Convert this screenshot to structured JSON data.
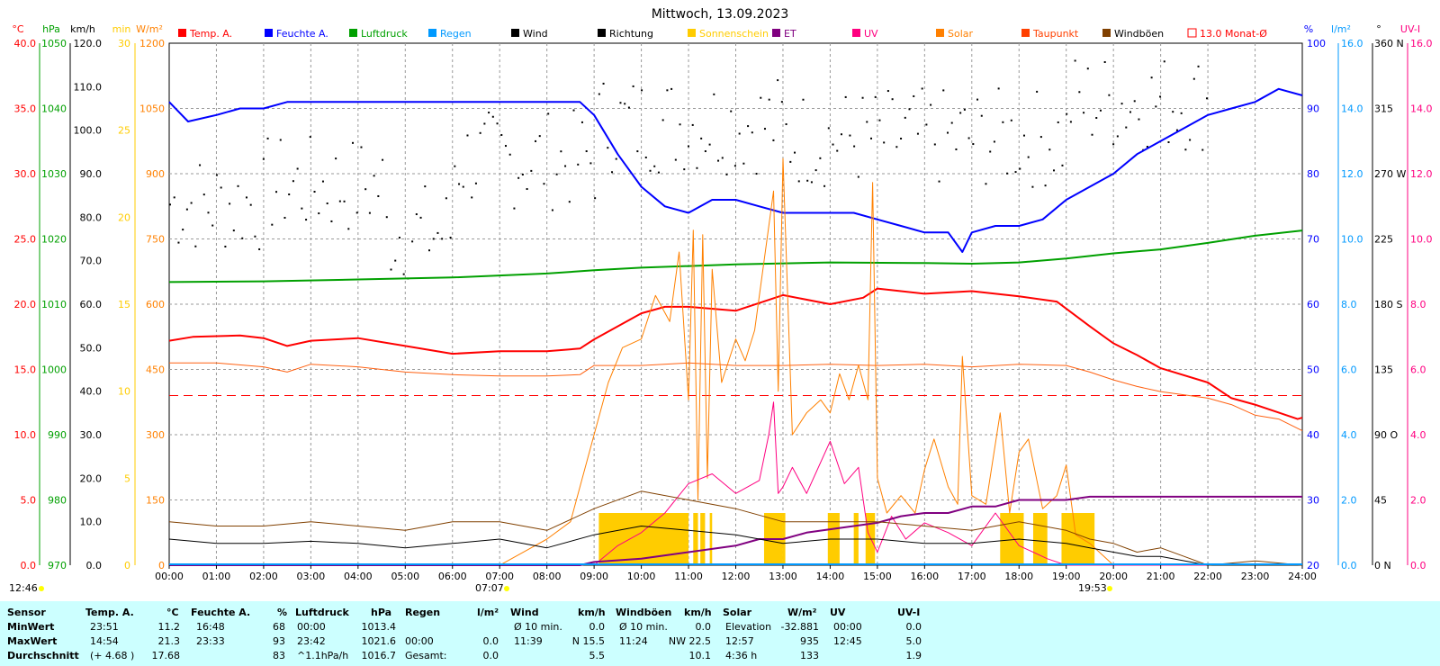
{
  "chart_data": {
    "type": "line",
    "title": "Mittwoch, 13.09.2023",
    "x": [
      "00:00",
      "01:00",
      "02:00",
      "03:00",
      "04:00",
      "05:00",
      "06:00",
      "07:00",
      "08:00",
      "09:00",
      "10:00",
      "11:00",
      "12:00",
      "13:00",
      "14:00",
      "15:00",
      "16:00",
      "17:00",
      "18:00",
      "19:00",
      "20:00",
      "21:00",
      "22:00",
      "23:00",
      "24:00"
    ],
    "legend": [
      {
        "name": "Temp. A.",
        "color": "#ff0000",
        "text_color": "#ff0000"
      },
      {
        "name": "Feuchte A.",
        "color": "#0000ff",
        "text_color": "#0000ff"
      },
      {
        "name": "Luftdruck",
        "color": "#00a000",
        "text_color": "#00a000"
      },
      {
        "name": "Regen",
        "color": "#0099ff",
        "text_color": "#0099ff"
      },
      {
        "name": "Wind",
        "color": "#000000",
        "text_color": "#000000"
      },
      {
        "name": "Richtung",
        "color": "#000000",
        "text_color": "#000000"
      },
      {
        "name": "Sonnenschein",
        "color": "#ffcc00",
        "text_color": "#ffcc00"
      },
      {
        "name": "ET",
        "color": "#800080",
        "text_color": "#800080"
      },
      {
        "name": "UV",
        "color": "#ff0080",
        "text_color": "#ff0080"
      },
      {
        "name": "Solar",
        "color": "#ff8000",
        "text_color": "#ff8000"
      },
      {
        "name": "Taupunkt",
        "color": "#ff4000",
        "text_color": "#ff4000"
      },
      {
        "name": "Windböen",
        "color": "#804000",
        "text_color": "#000000"
      },
      {
        "name": "13.0 Monat-Ø",
        "color": "#ff0000",
        "text_color": "#ff0000",
        "outline": true
      }
    ],
    "axes": {
      "temp": {
        "unit": "°C",
        "ticks": [
          "0.0",
          "5.0",
          "10.0",
          "15.0",
          "20.0",
          "25.0",
          "30.0",
          "35.0",
          "40.0"
        ],
        "color": "#ff0000",
        "range": [
          0,
          40
        ]
      },
      "pressure": {
        "unit": "hPa",
        "ticks": [
          "970",
          "980",
          "990",
          "1000",
          "1010",
          "1020",
          "1030",
          "1040",
          "1050"
        ],
        "color": "#00a000",
        "range": [
          970,
          1050
        ]
      },
      "wind": {
        "unit": "km/h",
        "ticks": [
          "0.0",
          "10.0",
          "20.0",
          "30.0",
          "40.0",
          "50.0",
          "60.0",
          "70.0",
          "80.0",
          "90.0",
          "100.0",
          "110.0",
          "120.0"
        ],
        "color": "#000000",
        "range": [
          0,
          120
        ]
      },
      "sunshine": {
        "unit": "min",
        "ticks": [
          "0",
          "5",
          "10",
          "15",
          "20",
          "25",
          "30"
        ],
        "color": "#ffcc00",
        "range": [
          0,
          30
        ]
      },
      "solar": {
        "unit": "W/m²",
        "ticks": [
          "0",
          "150",
          "300",
          "450",
          "600",
          "750",
          "900",
          "1050",
          "1200"
        ],
        "color": "#ff8000",
        "range": [
          0,
          1200
        ]
      },
      "humidity": {
        "unit": "%",
        "ticks": [
          "20",
          "30",
          "40",
          "50",
          "60",
          "70",
          "80",
          "90",
          "100"
        ],
        "color": "#0000ff",
        "range": [
          20,
          100
        ]
      },
      "rain": {
        "unit": "l/m²",
        "ticks": [
          "0.0",
          "2.0",
          "4.0",
          "6.0",
          "8.0",
          "10.0",
          "12.0",
          "14.0",
          "16.0"
        ],
        "color": "#0099ff",
        "range": [
          0,
          16
        ]
      },
      "direction": {
        "unit": "°",
        "ticks": [
          "0 N",
          "45",
          "90 O",
          "135",
          "180 S",
          "225",
          "270 W",
          "315",
          "360 N"
        ],
        "color": "#000000",
        "range": [
          0,
          360
        ]
      },
      "uv": {
        "unit": "UV-I",
        "ticks": [
          "0.0",
          "2.0",
          "4.0",
          "6.0",
          "8.0",
          "10.0",
          "12.0",
          "14.0",
          "16.0"
        ],
        "color": "#ff0080",
        "range": [
          0,
          16
        ]
      }
    },
    "monthly_avg_temp": 13.0,
    "series": [
      {
        "name": "Temp. A.",
        "axis": "temp",
        "color": "#ff0000",
        "x": [
          0,
          0.5,
          1.5,
          2,
          2.5,
          3,
          4,
          5,
          6,
          7,
          8,
          8.7,
          9,
          10,
          10.5,
          11,
          12,
          13,
          14,
          14.7,
          15,
          16,
          17,
          18,
          18.8,
          19.5,
          20,
          20.5,
          21,
          22,
          22.5,
          23,
          23.5,
          23.9,
          24
        ],
        "values": [
          17.2,
          17.5,
          17.6,
          17.4,
          16.8,
          17.2,
          17.4,
          16.8,
          16.2,
          16.4,
          16.4,
          16.6,
          17.3,
          19.3,
          19.8,
          19.8,
          19.5,
          20.7,
          20.0,
          20.5,
          21.2,
          20.8,
          21.0,
          20.6,
          20.2,
          18.3,
          17.0,
          16.1,
          15.1,
          14.0,
          12.8,
          12.3,
          11.7,
          11.2,
          11.3
        ]
      },
      {
        "name": "Feuchte A.",
        "axis": "humidity",
        "color": "#0000ff",
        "x": [
          0,
          0.4,
          1,
          1.5,
          2,
          2.5,
          3,
          4,
          5,
          6,
          7,
          8,
          8.7,
          9,
          9.5,
          10,
          10.5,
          11,
          11.5,
          12,
          12.5,
          13,
          13.5,
          14,
          14.5,
          15,
          15.5,
          16,
          16.5,
          16.8,
          17,
          17.5,
          18,
          18.5,
          19,
          19.5,
          20,
          20.5,
          21,
          21.5,
          22,
          22.5,
          23,
          23.5,
          24
        ],
        "values": [
          91,
          88,
          89,
          90,
          90,
          91,
          91,
          91,
          91,
          91,
          91,
          91,
          91,
          89,
          83,
          78,
          75,
          74,
          76,
          76,
          75,
          74,
          74,
          74,
          74,
          73,
          72,
          71,
          71,
          68,
          71,
          72,
          72,
          73,
          76,
          78,
          80,
          83,
          85,
          87,
          89,
          90,
          91,
          93,
          92
        ]
      },
      {
        "name": "Luftdruck",
        "axis": "pressure",
        "color": "#00a000",
        "x": [
          0,
          2,
          4,
          6,
          8,
          9,
          10,
          12,
          14,
          16,
          17,
          18,
          19,
          20,
          21,
          22,
          23,
          24
        ],
        "values": [
          1013.4,
          1013.5,
          1013.8,
          1014.1,
          1014.7,
          1015.2,
          1015.6,
          1016.1,
          1016.4,
          1016.3,
          1016.2,
          1016.4,
          1017.0,
          1017.8,
          1018.4,
          1019.4,
          1020.5,
          1021.3
        ]
      },
      {
        "name": "Taupunkt",
        "axis": "temp",
        "color": "#ff6010",
        "x": [
          0,
          1,
          2,
          2.5,
          3,
          4,
          5,
          6,
          7,
          8,
          8.7,
          9,
          10,
          11,
          12,
          13,
          14,
          15,
          16,
          17,
          18,
          19,
          19.5,
          20,
          20.5,
          21,
          22,
          22.5,
          23,
          23.5,
          24
        ],
        "values": [
          15.5,
          15.5,
          15.2,
          14.8,
          15.4,
          15.2,
          14.8,
          14.6,
          14.5,
          14.5,
          14.6,
          15.3,
          15.3,
          15.5,
          15.3,
          15.3,
          15.4,
          15.3,
          15.4,
          15.2,
          15.4,
          15.3,
          14.8,
          14.2,
          13.7,
          13.3,
          12.8,
          12.3,
          11.5,
          11.2,
          10.3
        ]
      },
      {
        "name": "Solar",
        "axis": "solar",
        "color": "#ff8000",
        "x": [
          7.0,
          7.5,
          8,
          8.5,
          9,
          9.3,
          9.6,
          10,
          10.3,
          10.6,
          10.8,
          11,
          11.1,
          11.2,
          11.3,
          11.4,
          11.5,
          11.7,
          12,
          12.2,
          12.4,
          12.6,
          12.8,
          12.9,
          13.0,
          13.2,
          13.5,
          13.8,
          14,
          14.2,
          14.4,
          14.6,
          14.8,
          14.9,
          15.0,
          15.2,
          15.5,
          15.8,
          16,
          16.2,
          16.5,
          16.7,
          16.8,
          17,
          17.3,
          17.6,
          17.8,
          18,
          18.2,
          18.5,
          18.8,
          19,
          19.2,
          19.5,
          20,
          24
        ],
        "values": [
          0,
          30,
          60,
          100,
          300,
          420,
          500,
          520,
          620,
          560,
          720,
          380,
          770,
          150,
          760,
          200,
          680,
          420,
          520,
          470,
          540,
          700,
          860,
          400,
          935,
          300,
          350,
          380,
          350,
          440,
          380,
          460,
          380,
          880,
          200,
          120,
          160,
          120,
          220,
          290,
          180,
          140,
          480,
          160,
          140,
          350,
          120,
          260,
          290,
          130,
          160,
          230,
          70,
          50,
          0,
          0
        ]
      },
      {
        "name": "UV",
        "axis": "uv",
        "color": "#ff0080",
        "x": [
          9,
          9.5,
          10,
          10.5,
          11,
          11.5,
          12,
          12.5,
          12.7,
          12.8,
          12.9,
          13,
          13.2,
          13.5,
          14,
          14.3,
          14.6,
          14.8,
          15,
          15.3,
          15.6,
          16,
          16.5,
          17,
          17.5,
          18,
          18.3,
          18.6,
          19,
          24
        ],
        "values": [
          0,
          0.6,
          1.0,
          1.6,
          2.5,
          2.8,
          2.2,
          2.6,
          4.0,
          5.0,
          2.2,
          2.4,
          3.0,
          2.2,
          3.8,
          2.5,
          3.0,
          1.0,
          0.4,
          1.5,
          0.8,
          1.3,
          1.0,
          0.6,
          1.6,
          0.6,
          0.4,
          0.2,
          0,
          0
        ]
      },
      {
        "name": "ET",
        "axis": "rain",
        "color": "#800080",
        "x": [
          0,
          8.7,
          9,
          10,
          10.5,
          11,
          11.5,
          12,
          12.5,
          13,
          13.5,
          14,
          14.5,
          15,
          15.5,
          16,
          16.5,
          17,
          17.5,
          18,
          18.5,
          19,
          19.5,
          20,
          24
        ],
        "values": [
          0,
          0,
          0.1,
          0.2,
          0.3,
          0.4,
          0.5,
          0.6,
          0.8,
          0.8,
          1.0,
          1.1,
          1.2,
          1.3,
          1.5,
          1.6,
          1.6,
          1.8,
          1.8,
          2.0,
          2.0,
          2.0,
          2.1,
          2.1,
          2.1
        ]
      },
      {
        "name": "Wind",
        "axis": "wind",
        "color": "#000000",
        "x": [
          0,
          1,
          2,
          3,
          4,
          5,
          6,
          7,
          8,
          9,
          10,
          11,
          12,
          13,
          14,
          15,
          16,
          17,
          18,
          19,
          19.5,
          20,
          20.5,
          21,
          22,
          23,
          24
        ],
        "values": [
          6,
          5,
          5,
          5.5,
          5,
          4,
          5,
          6,
          4,
          7,
          9,
          8,
          7,
          5,
          6,
          6,
          5,
          5,
          6,
          5,
          4,
          3,
          2,
          2,
          0,
          0,
          0
        ]
      },
      {
        "name": "Windböen",
        "axis": "wind",
        "color": "#804000",
        "x": [
          0,
          1,
          2,
          3,
          4,
          5,
          6,
          7,
          8,
          9,
          10,
          11,
          12,
          13,
          14,
          15,
          16,
          17,
          18,
          19,
          19.5,
          20,
          20.5,
          21,
          21.5,
          22,
          23,
          24
        ],
        "values": [
          10,
          9,
          9,
          10,
          9,
          8,
          10,
          10,
          8,
          13,
          17,
          15,
          13,
          10,
          10,
          10,
          9,
          8,
          10,
          8,
          6,
          5,
          3,
          4,
          2,
          0,
          1,
          0
        ]
      },
      {
        "name": "Sonnenschein",
        "axis": "sunshine",
        "color": "#ffcc00",
        "blocks": [
          [
            9.1,
            11.0
          ],
          [
            11.1,
            11.2
          ],
          [
            11.25,
            11.35
          ],
          [
            11.45,
            11.5
          ],
          [
            12.6,
            13.0
          ],
          [
            13.0,
            13.05
          ],
          [
            13.95,
            14.2
          ],
          [
            14.5,
            14.6
          ],
          [
            14.75,
            14.95
          ],
          [
            17.6,
            18.1
          ],
          [
            18.3,
            18.6
          ],
          [
            18.9,
            19.6
          ]
        ],
        "value": 3
      }
    ],
    "direction_points": "scatter",
    "min_wind_marker": "0 N-"
  },
  "time_labels": {
    "left": "12:46",
    "sunrise": "07:07",
    "sunset": "19:53"
  },
  "stats": {
    "headers": {
      "sensor": "Sensor",
      "temp": "Temp. A.",
      "temp_unit": "°C",
      "hum": "Feuchte A.",
      "hum_unit": "%",
      "press": "Luftdruck",
      "press_unit": "hPa",
      "rain": "Regen",
      "rain_unit": "l/m²",
      "wind": "Wind",
      "wind_unit": "km/h",
      "gust": "Windböen",
      "gust_unit": "km/h",
      "solar": "Solar",
      "solar_unit": "W/m²",
      "uv": "UV",
      "uv_unit": "UV-I"
    },
    "rows": [
      {
        "label": "MinWert",
        "temp_t": "23:51",
        "temp_v": "11.2",
        "hum_t": "16:48",
        "hum_v": "68",
        "press_t": "00:00",
        "press_v": "1013.4",
        "rain_t": "",
        "rain_v": "",
        "wind_t": "Ø 10 min.",
        "wind_v": "0.0",
        "gust_t": "Ø 10 min.",
        "gust_v": "0.0",
        "solar_t": "Elevation",
        "solar_v": "-32.881",
        "uv_t": "00:00",
        "uv_v": "0.0"
      },
      {
        "label": "MaxWert",
        "temp_t": "14:54",
        "temp_v": "21.3",
        "hum_t": "23:33",
        "hum_v": "93",
        "press_t": "23:42",
        "press_v": "1021.6",
        "rain_t": "00:00",
        "rain_v": "0.0",
        "wind_t": "11:39",
        "wind_v": "N 15.5",
        "gust_t": "11:24",
        "gust_v": "NW 22.5",
        "solar_t": "12:57",
        "solar_v": "935",
        "uv_t": "12:45",
        "uv_v": "5.0"
      },
      {
        "label": "Durchschnitt",
        "temp_t": "(+ 4.68 )",
        "temp_v": "17.68",
        "hum_t": "",
        "hum_v": "83",
        "press_t": "^1.1hPa/h",
        "press_v": "1016.7",
        "rain_t": "Gesamt:",
        "rain_v": "0.0",
        "wind_t": "",
        "wind_v": "5.5",
        "gust_t": "",
        "gust_v": "10.1",
        "solar_t": "4:36 h",
        "solar_v": "133",
        "uv_t": "",
        "uv_v": "1.9"
      }
    ]
  }
}
